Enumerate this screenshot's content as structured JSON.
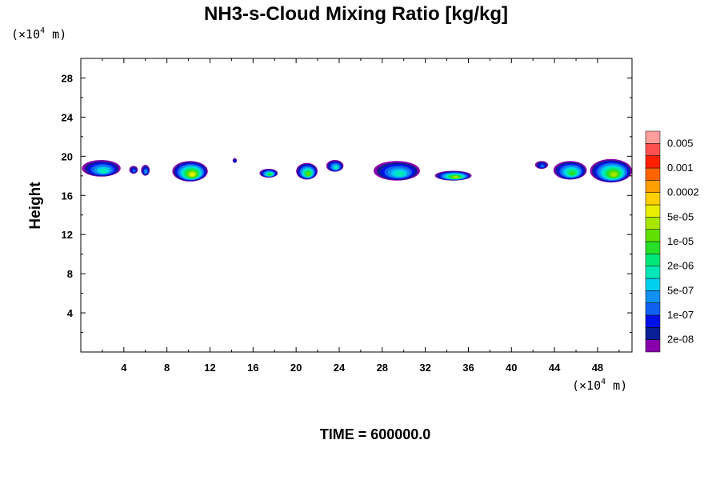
{
  "chart_data": {
    "type": "heatmap",
    "title": "NH3-s-Cloud Mixing Ratio [kg/kg]",
    "ylabel": "Height",
    "xlabel": "",
    "x_unit_prefix": "(×10",
    "x_unit_exp": "4",
    "x_unit_suffix": " m)",
    "y_unit_prefix": "(×10",
    "y_unit_exp": "4",
    "y_unit_suffix": " m)",
    "xlim": [
      0,
      51.2
    ],
    "ylim": [
      0,
      30
    ],
    "x_ticks": [
      4,
      8,
      12,
      16,
      20,
      24,
      28,
      32,
      36,
      40,
      44,
      48
    ],
    "y_ticks": [
      4,
      8,
      12,
      16,
      20,
      24,
      28
    ],
    "colorbar": {
      "colors": [
        "#8800aa",
        "#0a1e96",
        "#0010e8",
        "#1060f0",
        "#1090f0",
        "#00d0f0",
        "#00e8b8",
        "#00e878",
        "#28e028",
        "#60e000",
        "#a8e800",
        "#e8f000",
        "#ffd000",
        "#ffa000",
        "#ff6400",
        "#ff2000",
        "#ff5050",
        "#ff9c9c"
      ],
      "labels": [
        "2e-08",
        "1e-07",
        "5e-07",
        "2e-06",
        "1e-05",
        "5e-05",
        "0.0002",
        "0.001",
        "0.005"
      ]
    },
    "clouds": [
      {
        "x0": 0.1,
        "x1": 3.7,
        "ybot": 18.0,
        "ytop": 19.7,
        "peak": 6
      },
      {
        "x0": 4.5,
        "x1": 5.3,
        "ybot": 18.3,
        "ytop": 19.1,
        "peak": 3
      },
      {
        "x0": 5.6,
        "x1": 6.4,
        "ybot": 18.1,
        "ytop": 19.2,
        "peak": 4
      },
      {
        "x0": 8.5,
        "x1": 11.8,
        "ybot": 17.5,
        "ytop": 19.6,
        "peak": 11
      },
      {
        "x0": 14.1,
        "x1": 14.5,
        "ybot": 19.4,
        "ytop": 19.9,
        "peak": 2
      },
      {
        "x0": 16.6,
        "x1": 18.3,
        "ybot": 17.9,
        "ytop": 18.8,
        "peak": 8
      },
      {
        "x0": 20.0,
        "x1": 22.0,
        "ybot": 17.7,
        "ytop": 19.4,
        "peak": 9
      },
      {
        "x0": 22.8,
        "x1": 24.4,
        "ybot": 18.5,
        "ytop": 19.7,
        "peak": 6
      },
      {
        "x0": 27.2,
        "x1": 31.5,
        "ybot": 17.6,
        "ytop": 19.6,
        "peak": 6
      },
      {
        "x0": 32.9,
        "x1": 36.3,
        "ybot": 17.6,
        "ytop": 18.6,
        "peak": 10
      },
      {
        "x0": 42.2,
        "x1": 43.4,
        "ybot": 18.8,
        "ytop": 19.6,
        "peak": 3
      },
      {
        "x0": 43.9,
        "x1": 47.0,
        "ybot": 17.7,
        "ytop": 19.6,
        "peak": 8
      },
      {
        "x0": 47.3,
        "x1": 51.2,
        "ybot": 17.4,
        "ytop": 19.8,
        "peak": 10
      }
    ]
  },
  "footer": {
    "time_label": "TIME = 600000.0"
  }
}
